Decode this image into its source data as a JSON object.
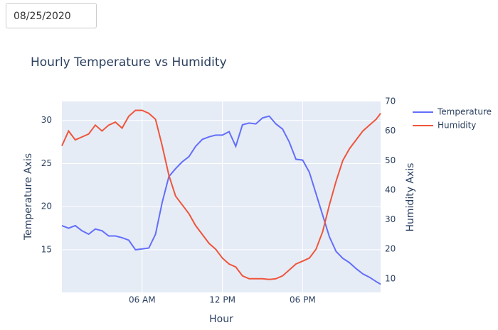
{
  "date_input": {
    "value": "08/25/2020"
  },
  "chart_data": {
    "type": "line",
    "title": "Hourly Temperature vs Humidity",
    "xlabel": "Hour",
    "ylabel": "Temperature Axis",
    "y2label": "Humidity Axis",
    "x": [
      0,
      0.5,
      1,
      1.5,
      2,
      2.5,
      3,
      3.5,
      4,
      4.5,
      5,
      5.5,
      6,
      6.5,
      7,
      7.5,
      8,
      8.5,
      9,
      9.5,
      10,
      10.5,
      11,
      11.5,
      12,
      12.5,
      13,
      13.5,
      14,
      14.5,
      15,
      15.5,
      16,
      16.5,
      17,
      17.5,
      18,
      18.5,
      19,
      19.5,
      20,
      20.5,
      21,
      21.5,
      22,
      22.5,
      23,
      23.5,
      23.83
    ],
    "series": [
      {
        "name": "Temperature",
        "color": "#636efa",
        "axis": "y",
        "values": [
          17.8,
          17.5,
          17.8,
          17.2,
          16.8,
          17.4,
          17.2,
          16.6,
          16.6,
          16.4,
          16.1,
          15.0,
          15.1,
          15.2,
          16.8,
          20.5,
          23.5,
          24.4,
          25.2,
          25.8,
          27.0,
          27.8,
          28.1,
          28.3,
          28.3,
          28.7,
          27.0,
          29.5,
          29.7,
          29.6,
          30.3,
          30.5,
          29.6,
          29.0,
          27.5,
          25.5,
          25.4,
          24.0,
          21.5,
          19.0,
          16.5,
          14.8,
          14.0,
          13.5,
          12.8,
          12.2,
          11.8,
          11.3,
          11.0
        ]
      },
      {
        "name": "Humidity",
        "color": "#ef553b",
        "axis": "y2",
        "values": [
          55,
          60,
          57,
          58,
          59,
          62,
          60,
          62,
          63,
          61,
          65,
          67,
          67,
          66,
          64,
          55,
          45,
          38,
          35,
          32,
          28,
          25,
          22,
          20,
          17,
          15,
          14,
          11,
          10,
          10,
          10,
          9.8,
          10,
          11,
          13,
          15,
          16,
          17,
          20,
          26,
          35,
          43,
          50,
          54,
          57,
          60,
          62,
          64,
          66
        ]
      }
    ],
    "xlim": [
      0,
      23.83
    ],
    "xticks": [
      {
        "value": 6,
        "label": "06 AM"
      },
      {
        "value": 12,
        "label": "12 PM"
      },
      {
        "value": 18,
        "label": "06 PM"
      }
    ],
    "ylim": [
      10.05,
      32.2
    ],
    "yticks": [
      15,
      20,
      25,
      30
    ],
    "y2lim": [
      5.4,
      70
    ],
    "y2ticks": [
      10,
      20,
      30,
      40,
      50,
      60,
      70
    ],
    "grid": true,
    "legend": "right"
  }
}
